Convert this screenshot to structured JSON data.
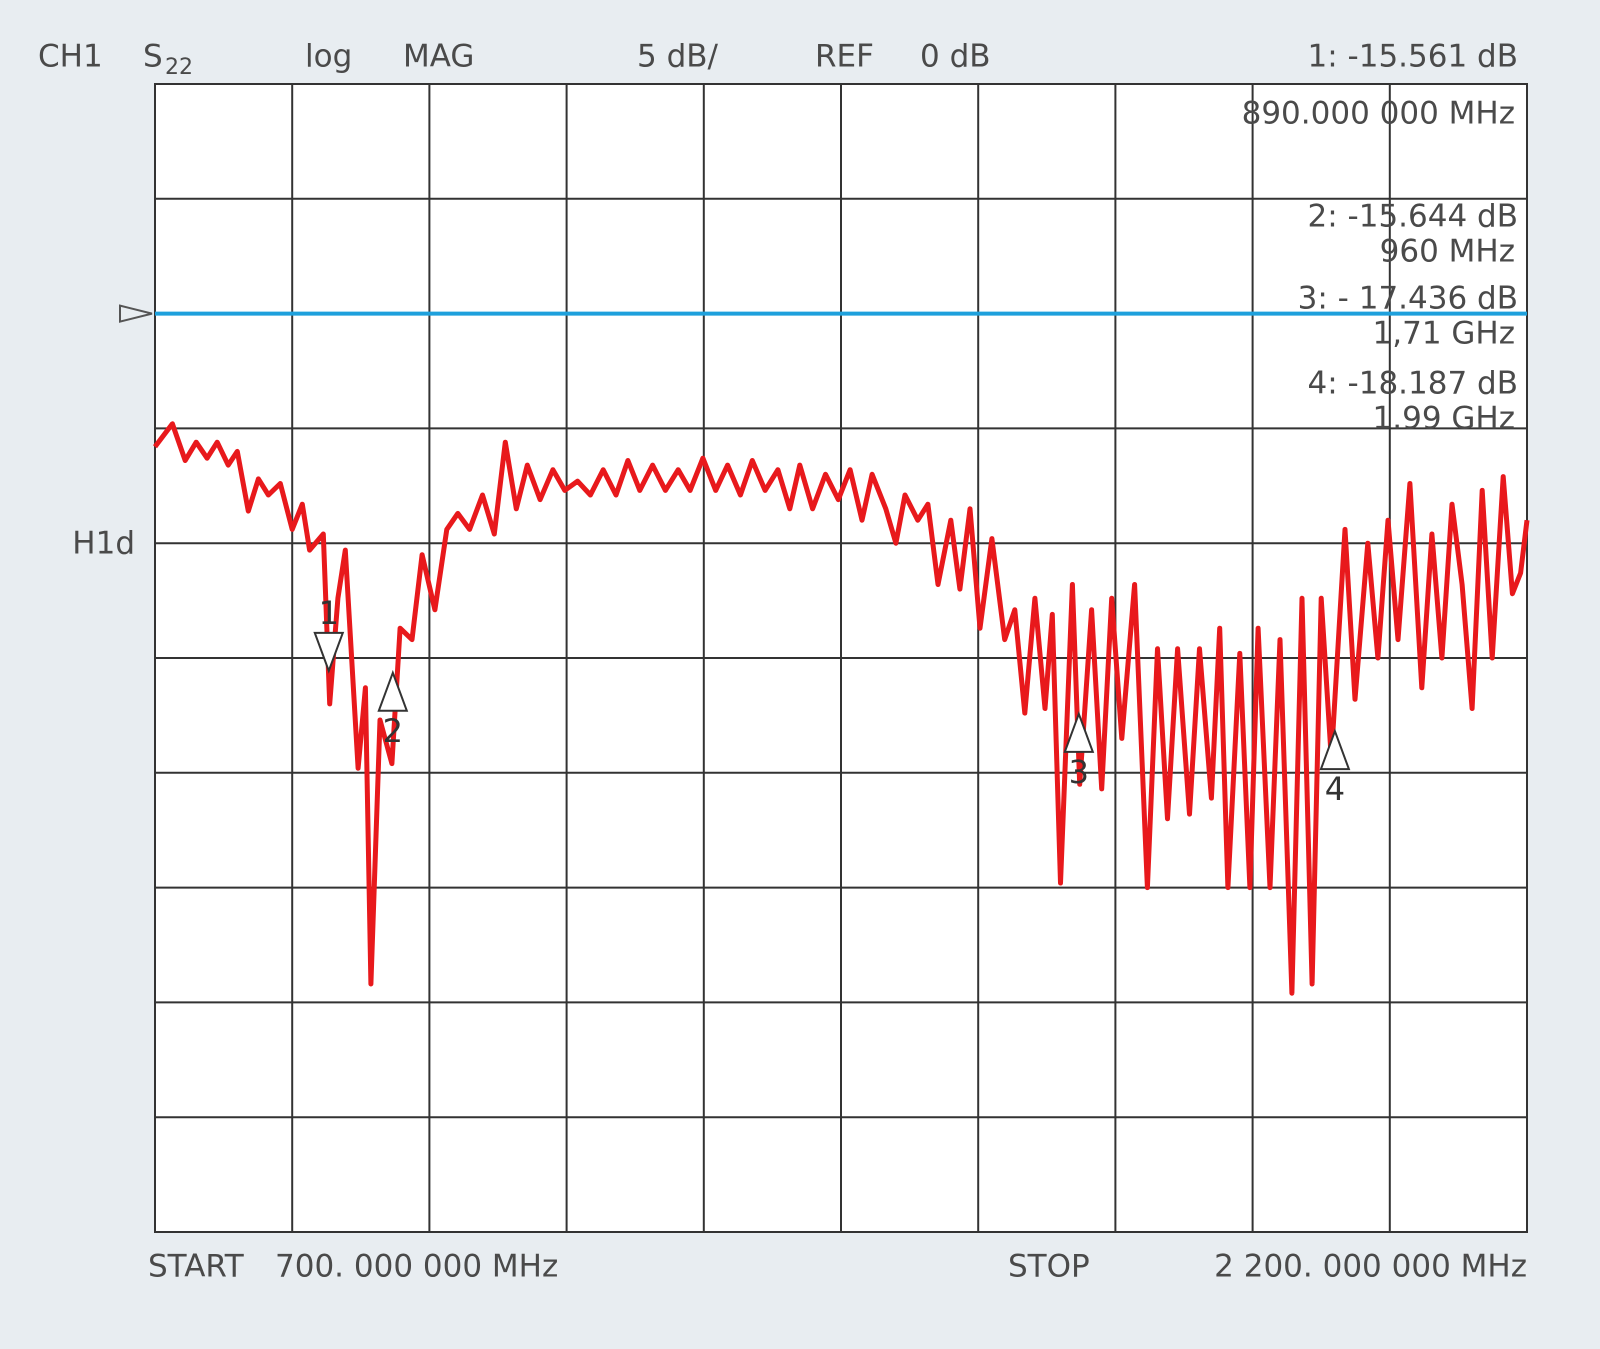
{
  "chart_data": {
    "type": "line",
    "header": {
      "channel": "CH1",
      "parameter": "S",
      "parameter_sub": "22",
      "format": "log",
      "format2": "MAG",
      "scale_label": "5 dB/",
      "ref_text": "REF",
      "ref_value_label": "0 dB"
    },
    "reference_level": 0,
    "limit_label": "H1d",
    "start_label": "START",
    "start_value": "700. 000 000 MHz",
    "stop_label": "STOP",
    "stop_value": "2 200. 000 000 MHz",
    "xlim": [
      700,
      2200
    ],
    "ylim": [
      -40,
      10
    ],
    "grid": true,
    "reference_color": "#1ea0dc",
    "series": [
      {
        "name": "S22",
        "color": "#e8191c",
        "x": [
          700,
          719,
          733,
          745,
          757,
          768,
          780,
          790,
          802,
          813,
          824,
          837,
          850,
          861,
          869,
          884,
          891,
          900,
          908,
          922,
          930,
          936,
          946,
          959,
          968,
          981,
          992,
          1006,
          1019,
          1031,
          1044,
          1058,
          1071,
          1083,
          1095,
          1107,
          1121,
          1135,
          1148,
          1162,
          1176,
          1190,
          1204,
          1217,
          1230,
          1244,
          1258,
          1272,
          1285,
          1299,
          1313,
          1326,
          1340,
          1353,
          1367,
          1381,
          1394,
          1405,
          1419,
          1433,
          1447,
          1460,
          1473,
          1484,
          1499,
          1510,
          1520,
          1534,
          1545,
          1556,
          1570,
          1580,
          1591,
          1602,
          1615,
          1629,
          1640,
          1651,
          1662,
          1673,
          1681,
          1690,
          1703,
          1711,
          1724,
          1735,
          1746,
          1757,
          1771,
          1785,
          1796,
          1807,
          1818,
          1831,
          1842,
          1855,
          1864,
          1873,
          1886,
          1897,
          1906,
          1919,
          1930,
          1943,
          1954,
          1965,
          1975,
          1986,
          2001,
          2012,
          2026,
          2037,
          2048,
          2059,
          2072,
          2085,
          2096,
          2107,
          2118,
          2129,
          2140,
          2151,
          2162,
          2174,
          2184,
          2193,
          2200
        ],
        "values": [
          -5.8,
          -4.8,
          -6.4,
          -5.6,
          -6.3,
          -5.6,
          -6.6,
          -6.0,
          -8.6,
          -7.2,
          -7.9,
          -7.4,
          -9.4,
          -8.3,
          -10.3,
          -9.6,
          -17.0,
          -12.4,
          -10.3,
          -19.8,
          -16.3,
          -29.2,
          -17.7,
          -19.6,
          -13.7,
          -14.2,
          -10.5,
          -12.9,
          -9.4,
          -8.7,
          -9.4,
          -7.9,
          -9.6,
          -5.6,
          -8.5,
          -6.6,
          -8.1,
          -6.8,
          -7.7,
          -7.3,
          -7.9,
          -6.8,
          -7.9,
          -6.4,
          -7.7,
          -6.6,
          -7.7,
          -6.8,
          -7.7,
          -6.3,
          -7.7,
          -6.6,
          -7.9,
          -6.4,
          -7.7,
          -6.8,
          -8.5,
          -6.6,
          -8.5,
          -7.0,
          -8.1,
          -6.8,
          -9.0,
          -7.0,
          -8.5,
          -10.0,
          -7.9,
          -9.0,
          -8.3,
          -11.8,
          -9.0,
          -12.0,
          -8.5,
          -13.7,
          -9.8,
          -14.2,
          -12.9,
          -17.4,
          -12.4,
          -17.2,
          -13.1,
          -24.8,
          -11.8,
          -20.5,
          -12.9,
          -20.7,
          -12.4,
          -18.5,
          -11.8,
          -25.0,
          -14.6,
          -22.0,
          -14.6,
          -21.8,
          -14.6,
          -21.1,
          -13.7,
          -25.0,
          -14.8,
          -25.0,
          -13.7,
          -25.0,
          -14.2,
          -29.6,
          -12.4,
          -29.2,
          -12.4,
          -19.4,
          -9.4,
          -16.8,
          -10.0,
          -15.0,
          -9.0,
          -14.2,
          -7.4,
          -16.3,
          -9.6,
          -15.0,
          -8.3,
          -11.8,
          -17.2,
          -7.7,
          -15.0,
          -7.1,
          -12.2,
          -11.3,
          -9.0
        ]
      }
    ],
    "markers": [
      {
        "label": "1",
        "x": 890,
        "y": -15.561,
        "direction": "down",
        "readout": "1: -15.561 dB",
        "frequency": "890.000 000 MHz"
      },
      {
        "label": "2",
        "x": 960,
        "y": -15.644,
        "direction": "up",
        "readout": "2: -15.644 dB",
        "frequency": "960 MHz"
      },
      {
        "label": "3",
        "x": 1710,
        "y": -17.436,
        "direction": "up",
        "readout": "3: - 17.436 dB",
        "frequency": "1,71 GHz"
      },
      {
        "label": "4",
        "x": 1990,
        "y": -18.187,
        "direction": "up",
        "readout": "4: -18.187 dB",
        "frequency": "1.99 GHz"
      }
    ]
  }
}
